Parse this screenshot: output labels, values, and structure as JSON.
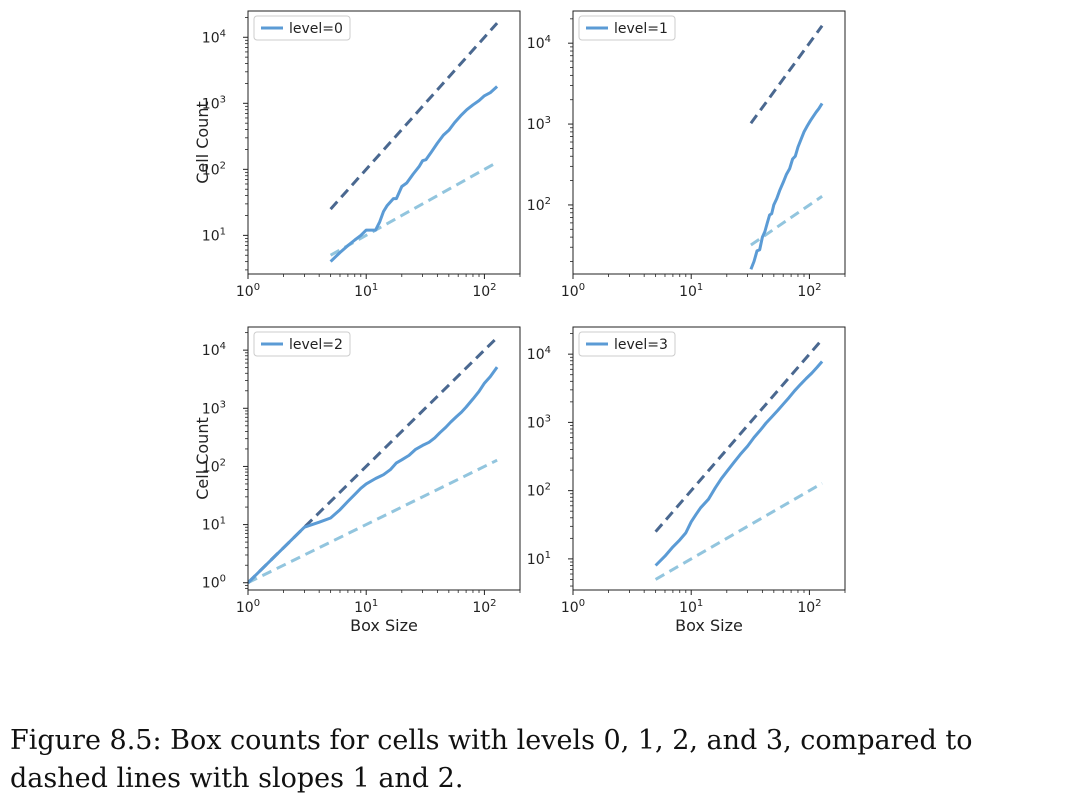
{
  "caption": "Figure 8.5: Box counts for cells with levels 0, 1, 2, and 3, compared to dashed lines with slopes 1 and 2.",
  "colors": {
    "data_line": "#5b9bd5",
    "slope2_line": "#4a6890",
    "slope1_line": "#92c5de",
    "axes": "#222222"
  },
  "chart_data": [
    {
      "type": "line",
      "scale": "log-log",
      "legend": "level=0",
      "legend_position": "upper-left",
      "xlabel": "",
      "ylabel": "Cell Count",
      "xlim": [
        1,
        200
      ],
      "ylim": [
        2.6,
        25000
      ],
      "xticks": [
        1,
        10,
        100
      ],
      "yticks": [
        10,
        100,
        1000,
        10000
      ],
      "series": [
        {
          "role": "data",
          "style": "solid",
          "x": [
            5,
            6,
            7,
            8,
            9,
            10,
            11,
            12,
            13,
            14,
            15,
            17,
            18,
            20,
            22,
            25,
            28,
            30,
            32,
            35,
            40,
            45,
            50,
            56,
            63,
            71,
            80,
            90,
            100,
            112,
            128
          ],
          "y": [
            4,
            5.5,
            7,
            8.5,
            10,
            12,
            12,
            12,
            16,
            23,
            28,
            36,
            36,
            55,
            62,
            85,
            110,
            135,
            140,
            175,
            250,
            330,
            390,
            510,
            650,
            800,
            950,
            1100,
            1300,
            1450,
            1800
          ]
        },
        {
          "role": "slope-2",
          "style": "dashed",
          "x": [
            5,
            128
          ],
          "y": [
            25,
            16400
          ]
        },
        {
          "role": "slope-1",
          "style": "dashed",
          "x": [
            5,
            128
          ],
          "y": [
            5,
            128
          ]
        }
      ]
    },
    {
      "type": "line",
      "scale": "log-log",
      "legend": "level=1",
      "legend_position": "upper-left",
      "xlabel": "",
      "ylabel": "",
      "xlim": [
        1,
        200
      ],
      "ylim": [
        14,
        25000
      ],
      "xticks": [
        1,
        10,
        100
      ],
      "yticks": [
        100,
        1000,
        10000
      ],
      "series": [
        {
          "role": "data",
          "style": "solid",
          "x": [
            32,
            34,
            36,
            38,
            40,
            42,
            44,
            46,
            48,
            50,
            53,
            56,
            60,
            64,
            68,
            72,
            76,
            80,
            85,
            90,
            96,
            102,
            108,
            114,
            120,
            128
          ],
          "y": [
            16,
            20,
            27,
            28,
            40,
            47,
            60,
            75,
            78,
            100,
            120,
            150,
            190,
            240,
            280,
            370,
            400,
            520,
            650,
            800,
            950,
            1100,
            1250,
            1400,
            1550,
            1800
          ]
        },
        {
          "role": "slope-2",
          "style": "dashed",
          "x": [
            32,
            128
          ],
          "y": [
            1024,
            16400
          ]
        },
        {
          "role": "slope-1",
          "style": "dashed",
          "x": [
            32,
            128
          ],
          "y": [
            32,
            128
          ]
        }
      ]
    },
    {
      "type": "line",
      "scale": "log-log",
      "legend": "level=2",
      "legend_position": "upper-left",
      "xlabel": "Box Size",
      "ylabel": "Cell Count",
      "xlim": [
        1,
        200
      ],
      "ylim": [
        0.75,
        25000
      ],
      "xticks": [
        1,
        10,
        100
      ],
      "yticks": [
        1,
        10,
        100,
        1000,
        10000
      ],
      "series": [
        {
          "role": "data",
          "style": "solid",
          "x": [
            1,
            2,
            3,
            4,
            5,
            6,
            7,
            8,
            9,
            10,
            12,
            14,
            16,
            18,
            20,
            23,
            26,
            30,
            34,
            38,
            42,
            47,
            52,
            58,
            64,
            70,
            80,
            90,
            100,
            112,
            128
          ],
          "y": [
            1,
            4,
            9,
            11,
            13,
            18,
            25,
            33,
            42,
            50,
            62,
            72,
            88,
            115,
            130,
            155,
            195,
            230,
            260,
            310,
            380,
            470,
            580,
            720,
            860,
            1050,
            1450,
            1950,
            2700,
            3500,
            5100
          ]
        },
        {
          "role": "slope-2",
          "style": "dashed",
          "x": [
            1,
            128
          ],
          "y": [
            1,
            16400
          ]
        },
        {
          "role": "slope-1",
          "style": "dashed",
          "x": [
            1,
            128
          ],
          "y": [
            1,
            128
          ]
        }
      ]
    },
    {
      "type": "line",
      "scale": "log-log",
      "legend": "level=3",
      "legend_position": "upper-left",
      "xlabel": "Box Size",
      "ylabel": "",
      "xlim": [
        1,
        200
      ],
      "ylim": [
        3.5,
        25000
      ],
      "xticks": [
        1,
        10,
        100
      ],
      "yticks": [
        10,
        100,
        1000,
        10000
      ],
      "series": [
        {
          "role": "data",
          "style": "solid",
          "x": [
            5,
            6,
            7,
            8,
            9,
            10,
            11,
            12,
            14,
            16,
            18,
            20,
            23,
            26,
            30,
            34,
            38,
            43,
            48,
            54,
            60,
            67,
            75,
            84,
            94,
            105,
            116,
            128
          ],
          "y": [
            8,
            11,
            15,
            19,
            24,
            35,
            45,
            56,
            75,
            110,
            150,
            190,
            260,
            340,
            450,
            600,
            750,
            980,
            1200,
            1500,
            1850,
            2300,
            2900,
            3600,
            4400,
            5300,
            6400,
            7800
          ]
        },
        {
          "role": "slope-2",
          "style": "dashed",
          "x": [
            5,
            128
          ],
          "y": [
            25,
            16400
          ]
        },
        {
          "role": "slope-1",
          "style": "dashed",
          "x": [
            5,
            128
          ],
          "y": [
            5,
            128
          ]
        }
      ]
    }
  ]
}
